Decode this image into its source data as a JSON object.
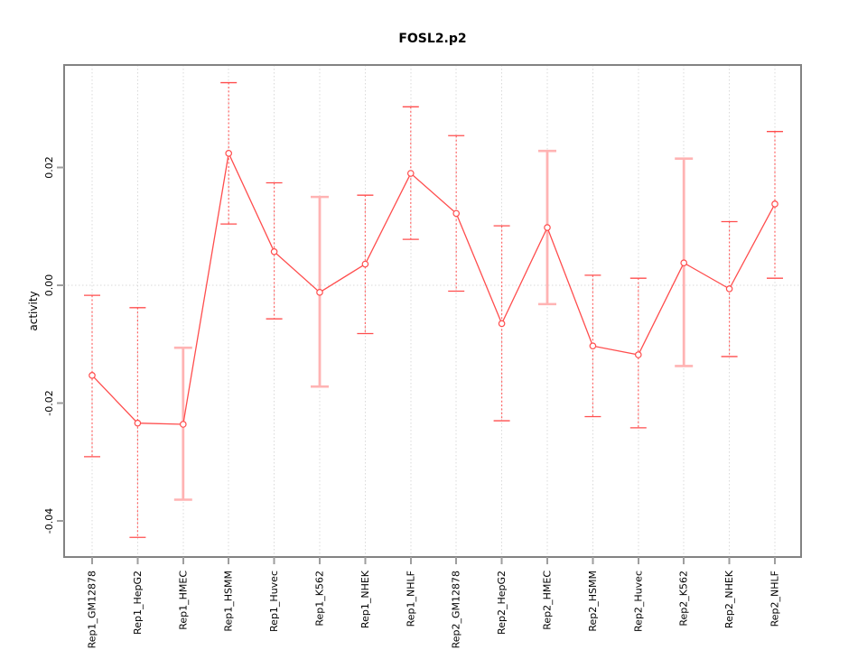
{
  "chart_data": {
    "type": "line",
    "title": "FOSL2.p2",
    "xlabel": "",
    "ylabel": "activity",
    "legend": "none",
    "grid": "dotted vertical gridline per category, dotted horizontal line at y=0",
    "ylim": [
      -0.0461,
      0.0374
    ],
    "ytick_labels": [
      "0.02",
      "0.00",
      "-0.02",
      "-0.04"
    ],
    "ytick_values": [
      0.02,
      0.0,
      -0.02,
      -0.04
    ],
    "categories": [
      "Rep1_GM12878",
      "Rep1_HepG2",
      "Rep1_HMEC",
      "Rep1_HSMM",
      "Rep1_Huvec",
      "Rep1_K562",
      "Rep1_NHEK",
      "Rep1_NHLF",
      "Rep2_GM12878",
      "Rep2_HepG2",
      "Rep2_HMEC",
      "Rep2_HSMM",
      "Rep2_Huvec",
      "Rep2_K562",
      "Rep2_NHEK",
      "Rep2_NHLF"
    ],
    "series": [
      {
        "name": "activity",
        "marker": "open-circle",
        "values": [
          -0.0153,
          -0.0234,
          -0.0236,
          0.0224,
          0.0057,
          -0.0012,
          0.0036,
          0.019,
          0.0122,
          -0.0065,
          0.0098,
          -0.0103,
          -0.0118,
          0.0038,
          -0.0006,
          0.0138
        ],
        "error_upper": [
          -0.0017,
          -0.0038,
          -0.0106,
          0.0344,
          0.0174,
          0.015,
          0.0153,
          0.0303,
          0.0254,
          0.0101,
          0.0228,
          0.0017,
          0.0012,
          0.0215,
          0.0108,
          0.0261
        ],
        "error_lower": [
          -0.0291,
          -0.0428,
          -0.0364,
          0.0104,
          -0.0057,
          -0.0172,
          -0.0082,
          0.0078,
          -0.001,
          -0.023,
          -0.0032,
          -0.0223,
          -0.0242,
          -0.0137,
          -0.0121,
          0.0012
        ],
        "wide_pale_error_bar": [
          false,
          false,
          true,
          false,
          false,
          true,
          false,
          false,
          false,
          false,
          true,
          false,
          false,
          true,
          false,
          false
        ]
      }
    ],
    "colors": {
      "line": "#ff4d4d",
      "error_bar_dotted": "#ff6666",
      "error_bar_pale": "#ffb3b3",
      "marker_fill": "#ffffff",
      "frame": "#828282",
      "tick": "#9e9e9e",
      "grid": "#d9d9d9",
      "text": "#000000",
      "background": "#ffffff"
    }
  }
}
